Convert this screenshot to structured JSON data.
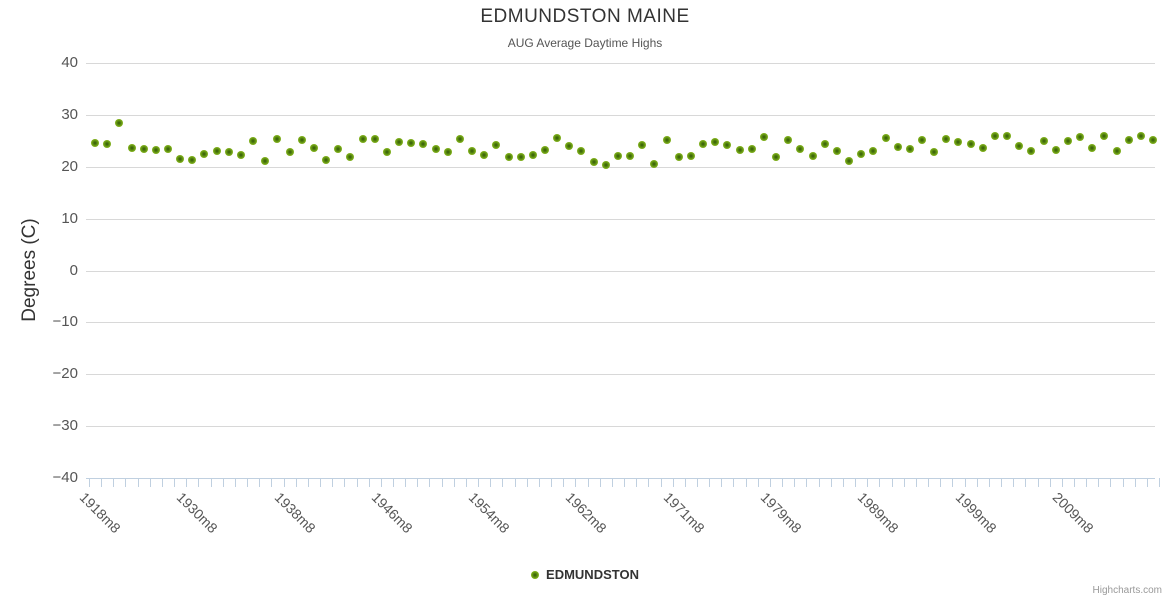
{
  "header": {
    "title": "EDMUNDSTON MAINE",
    "subtitle": "AUG Average Daytime Highs"
  },
  "legend": {
    "label": "EDMUNDSTON"
  },
  "credits": {
    "label": "Highcharts.com"
  },
  "colors": {
    "series_green": "#8bbc21",
    "gridline": "#d8d8d8",
    "axis_tick": "#c0d0e0",
    "title_text": "#333333",
    "axis_label_text": "#555555",
    "credits_text": "#999999"
  },
  "chart_data": {
    "type": "scatter",
    "title": "EDMUNDSTON MAINE",
    "subtitle": "AUG Average Daytime Highs",
    "xlabel": "",
    "ylabel": "Degrees (C)",
    "ylim": [
      -40,
      40
    ],
    "ytick_step": 10,
    "yticks": [
      40,
      30,
      20,
      10,
      0,
      -10,
      -20,
      -30,
      -40
    ],
    "grid": "horizontal-only",
    "legend_position": "bottom-center",
    "xtick_labels": [
      {
        "index": 0,
        "label": "1918m8"
      },
      {
        "index": 8,
        "label": "1930m8"
      },
      {
        "index": 16,
        "label": "1938m8"
      },
      {
        "index": 24,
        "label": "1946m8"
      },
      {
        "index": 32,
        "label": "1954m8"
      },
      {
        "index": 40,
        "label": "1962m8"
      },
      {
        "index": 48,
        "label": "1971m8"
      },
      {
        "index": 56,
        "label": "1979m8"
      },
      {
        "index": 64,
        "label": "1989m8"
      },
      {
        "index": 72,
        "label": "1999m8"
      },
      {
        "index": 80,
        "label": "2009m8"
      }
    ],
    "series": [
      {
        "name": "EDMUNDSTON",
        "color": "#8bbc21",
        "values": [
          24.5,
          24.4,
          28.4,
          23.7,
          23.5,
          23.2,
          23.4,
          21.5,
          21.3,
          22.4,
          23.0,
          22.9,
          22.2,
          24.9,
          21.1,
          25.4,
          22.9,
          25.2,
          23.7,
          21.4,
          23.5,
          21.8,
          25.3,
          25.3,
          22.9,
          24.7,
          24.5,
          24.3,
          23.4,
          22.9,
          25.3,
          23.1,
          22.2,
          24.2,
          21.9,
          21.8,
          22.3,
          23.3,
          25.6,
          24.0,
          23.1,
          20.9,
          20.3,
          22.1,
          22.1,
          24.2,
          20.5,
          25.1,
          21.8,
          22.1,
          24.4,
          24.7,
          24.2,
          23.3,
          23.5,
          25.7,
          21.8,
          25.1,
          23.4,
          22.1,
          24.4,
          23.1,
          21.1,
          22.4,
          23.1,
          25.6,
          23.8,
          23.4,
          25.2,
          22.8,
          25.4,
          24.8,
          24.4,
          23.7,
          25.9,
          26.0,
          24.0,
          23.0,
          24.9,
          23.3,
          24.9,
          25.7,
          23.6,
          26.0,
          23.1,
          25.1,
          26.0,
          25.2
        ]
      }
    ]
  }
}
